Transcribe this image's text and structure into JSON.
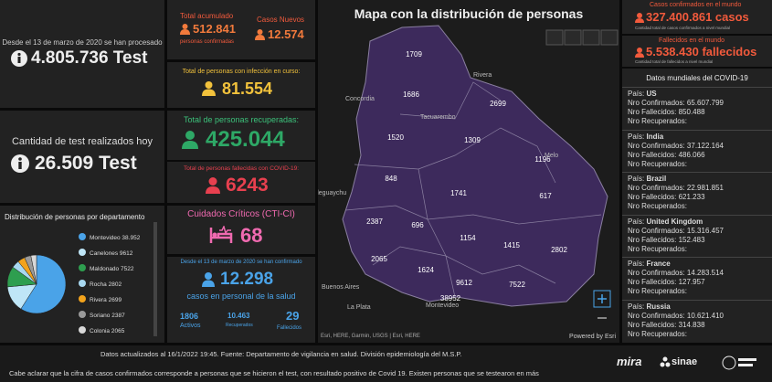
{
  "tests_total": {
    "caption": "Desde el 13 de marzo de 2020 se han procesado",
    "value": "4.805.736 Test"
  },
  "tests_today": {
    "caption": "Cantidad de test realizados hoy",
    "value": "26.509 Test"
  },
  "departments": {
    "type": "pie",
    "title": "Distribución de personas por departamento",
    "categories": [
      "Montevideo",
      "Canelones",
      "Maldonado",
      "Rocha",
      "Rivera",
      "Soriano",
      "Colonia"
    ],
    "values": [
      38952,
      9612,
      7522,
      2802,
      2699,
      2387,
      2065
    ],
    "value_labels": [
      "38.952",
      "9612",
      "7522",
      "2802",
      "2699",
      "2387",
      "2065"
    ],
    "colors": [
      "#4aa3e8",
      "#bfe6f7",
      "#2e9e4f",
      "#a8d8f0",
      "#f2a31c",
      "#9a9a9a",
      "#d8d8d8"
    ]
  },
  "accumulated": {
    "label": "Total acumulado",
    "value": "512.841",
    "unit": "personas confirmadas"
  },
  "new_cases": {
    "label": "Casos Nuevos",
    "value": "12.574"
  },
  "active": {
    "label": "Total de personas con infección en curso:",
    "value": "81.554"
  },
  "recovered": {
    "label": "Total de personas recuperadas:",
    "value": "425.044"
  },
  "deceased": {
    "label": "Total de personas fallecidas con COVID-19:",
    "value": "6243"
  },
  "critical": {
    "label": "Cuidados Críticos (CTI-CI)",
    "value": "68"
  },
  "health_staff": {
    "caption": "Desde el 13 de marzo de 2020 se han confirmado",
    "value": "12.298",
    "unit": "casos en personal de la salud",
    "active": {
      "value": "1806",
      "label": "Activos"
    },
    "recovered": {
      "value": "10.463",
      "label": "Recuperados"
    },
    "deceased": {
      "value": "29",
      "label": "Fallecidos"
    }
  },
  "map": {
    "title": "Mapa con la distribución de personas",
    "counts": [
      "1709",
      "1686",
      "2699",
      "1520",
      "1309",
      "1196",
      "848",
      "1741",
      "617",
      "2387",
      "696",
      "1154",
      "1415",
      "2802",
      "2065",
      "1624",
      "9612",
      "7522",
      "38952"
    ],
    "places": [
      "Rivera",
      "Concordia",
      "Tacuarembo",
      "Melo",
      "Gualeguaychu",
      "Buenos Aires",
      "La Plata",
      "Montevideo"
    ],
    "attribution": "Esri, HERE, Garmin, USGS | Esri, HERE",
    "powered": "Powered by Esri"
  },
  "world_cases": {
    "label": "Casos confirmados en el mundo",
    "value": "327.400.861 casos",
    "note": "Cantidad total de casos confirmados a nivel mundial"
  },
  "world_deaths": {
    "label": "Fallecidos en el mundo",
    "value": "5.538.430 fallecidos",
    "note": "Cantidad total de fallecidos a nivel mundial"
  },
  "world_list": {
    "title": "Datos mundiales del COVID-19",
    "labels": {
      "country": "País:",
      "confirmed": "Nro Confirmados:",
      "deaths": "Nro Fallecidos:",
      "recovered": "Nro Recuperados:"
    },
    "rows": [
      {
        "country": "US",
        "confirmed": "65.607.799",
        "deaths": "850.488"
      },
      {
        "country": "India",
        "confirmed": "37.122.164",
        "deaths": "486.066"
      },
      {
        "country": "Brazil",
        "confirmed": "22.981.851",
        "deaths": "621.233"
      },
      {
        "country": "United Kingdom",
        "confirmed": "15.316.457",
        "deaths": "152.483"
      },
      {
        "country": "France",
        "confirmed": "14.283.514",
        "deaths": "127.957"
      },
      {
        "country": "Russia",
        "confirmed": "10.621.410",
        "deaths": "314.838"
      }
    ]
  },
  "footer": {
    "updated": "Datos actualizados al 16/1/2022 19:45. Fuente: Departamento de vigilancia en salud. División epidemiología del M.S.P.",
    "note": "Cabe aclarar que la cifra de casos confirmados corresponde a personas que se hicieron el test, con resultado positivo de Covid 19. Existen personas que se testearon en más",
    "logos": [
      "mira",
      "sinae"
    ]
  }
}
